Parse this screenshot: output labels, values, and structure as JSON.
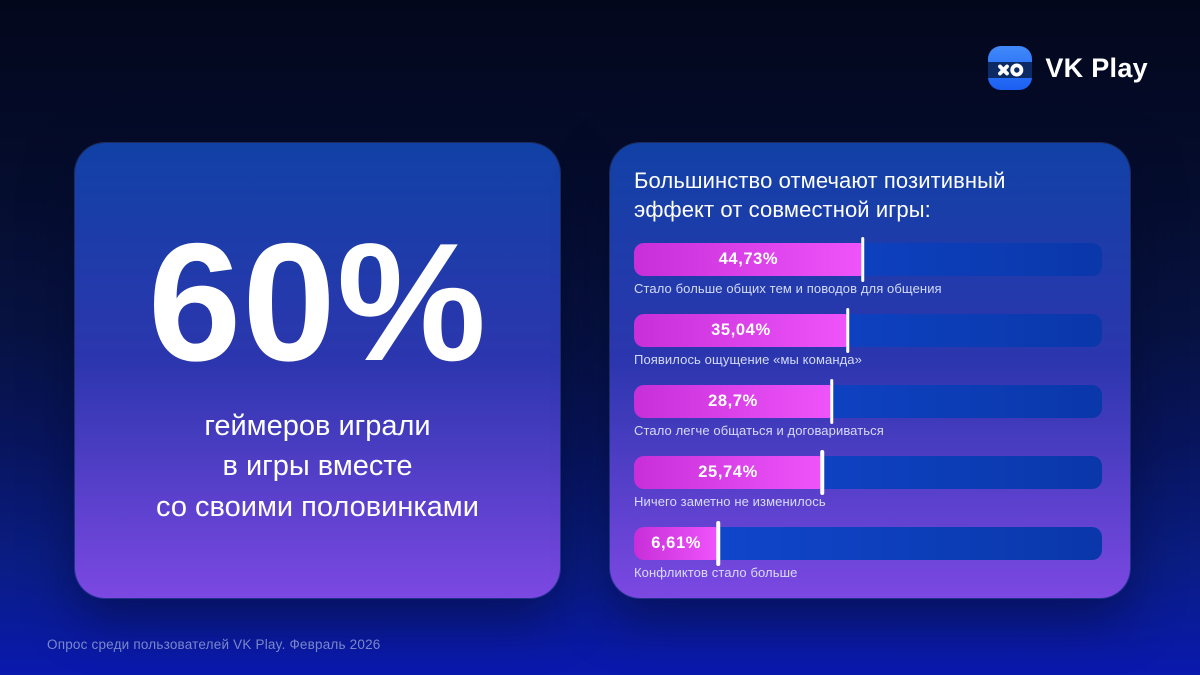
{
  "theme": {
    "bg-top": "#03071c",
    "bg-mid": "#071240",
    "bg-low": "#0a1d85",
    "bg-bottom": "#0a19ae",
    "card-top": "#1141a6",
    "card-mid": "#2c36ae",
    "card-bottom": "#7c48e2",
    "accent-l": "#c92fd9",
    "accent-r": "#ee54f9",
    "track-l": "#1149d2",
    "track-r": "#0a37aa",
    "text": "#ffffff",
    "muted": "#93a0d6"
  },
  "brand": {
    "name": "VK Play",
    "icon": "vk-play-gamepad-icon",
    "icon_colors": {
      "square_top": "#4189fa",
      "square_bottom": "#1b5ff2",
      "band": "#0c2a63",
      "glyphs": "#ffffff"
    }
  },
  "stat_card": {
    "value": "60%",
    "caption_lines": [
      "геймеров играли",
      "в игры вместе",
      "со своими половинками"
    ]
  },
  "chart_card": {
    "title_line1": "Большинство отмечают позитивный",
    "title_line2": "эффект от совместной игры:"
  },
  "chart_data": {
    "type": "bar",
    "orientation": "horizontal",
    "title": "Большинство отмечают позитивный эффект от совместной игры:",
    "categories": [
      "Стало больше общих тем и поводов для общения",
      "Появилось ощущение «мы команда»",
      "Стало легче общаться и договариваться",
      "Ничего заметно не изменилось",
      "Конфликтов стало больше"
    ],
    "values": [
      44.73,
      35.04,
      28.7,
      25.74,
      6.61
    ],
    "value_labels": [
      "44,73%",
      "35,04%",
      "28,7%",
      "25,74%",
      "6,61%"
    ],
    "bar_fill_percents": [
      48.9,
      45.7,
      42.3,
      40.2,
      18
    ],
    "bar_color": "#d83be6",
    "track_color": "#0c40c2",
    "divider_color": "#ffffff",
    "grid": false,
    "legend": "none"
  },
  "footer": {
    "text": "Опрос среди пользователей VK Play. Февраль 2026"
  }
}
